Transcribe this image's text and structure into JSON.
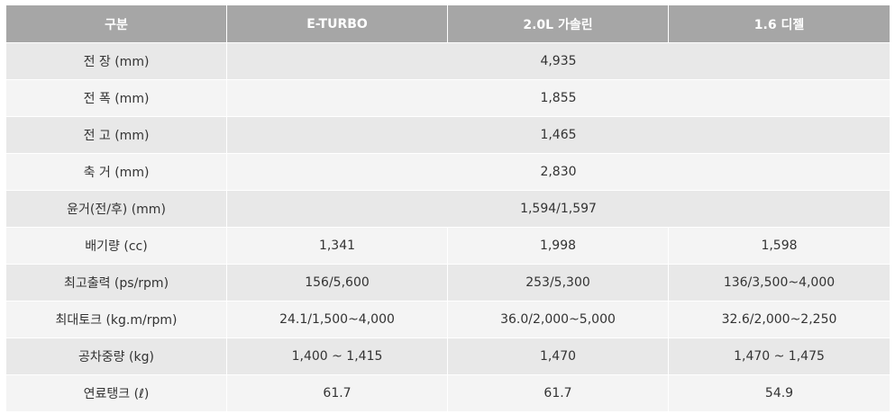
{
  "headers": [
    "구분",
    "E-TURBO",
    "2.0L 가솔린",
    "1.6 디젤"
  ],
  "rows": [
    {
      "label": "전 장 (mm)",
      "merged": "4,935"
    },
    {
      "label": "전 폭 (mm)",
      "merged": "1,855"
    },
    {
      "label": "전 고 (mm)",
      "merged": "1,465"
    },
    {
      "label": "축 거 (mm)",
      "merged": "2,830"
    },
    {
      "label": "윤거(전/후) (mm)",
      "merged": "1,594/1,597"
    },
    {
      "label": "배기량 (cc)",
      "values": [
        "1,341",
        "1,998",
        "1,598"
      ]
    },
    {
      "label": "최고출력 (ps/rpm)",
      "values": [
        "156/5,600",
        "253/5,300",
        "136/3,500~4,000"
      ]
    },
    {
      "label": "최대토크 (kg.m/rpm)",
      "values": [
        "24.1/1,500~4,000",
        "36.0/2,000~5,000",
        "32.6/2,000~2,250"
      ]
    },
    {
      "label": "공차중량 (kg)",
      "values": [
        "1,400 ~ 1,415",
        "1,470",
        "1,470 ~ 1,475"
      ]
    },
    {
      "label": "연료탱크 (ℓ)",
      "values": [
        "61.7",
        "61.7",
        "54.9"
      ]
    }
  ]
}
